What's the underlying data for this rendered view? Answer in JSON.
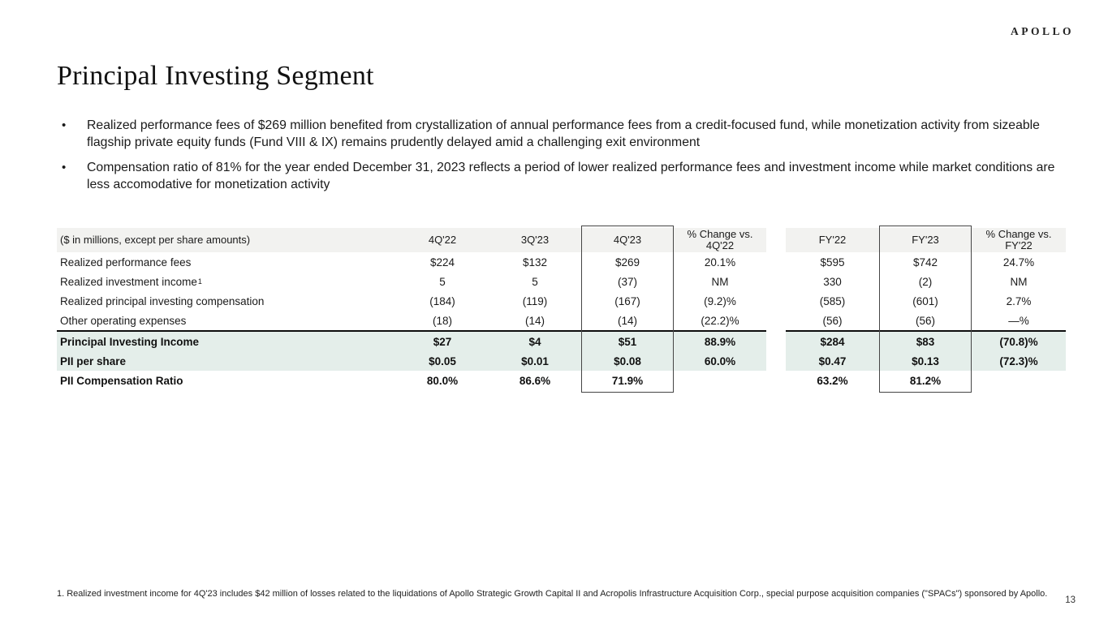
{
  "header": {
    "logo": "APOLLO",
    "title": "Principal Investing Segment"
  },
  "bullets": {
    "marker": "•",
    "items": [
      "Realized performance fees of $269 million benefited from crystallization of annual performance fees from a credit-focused fund, while monetization activity from sizeable flagship private equity funds (Fund VIII & IX) remains prudently delayed amid a challenging exit environment",
      "Compensation ratio of 81% for the year ended December 31, 2023 reflects a period of lower realized performance fees and investment income while market conditions are less accomodative for monetization activity"
    ]
  },
  "table": {
    "label_header": "($ in millions, except per share amounts)",
    "col_headers": [
      "4Q'22",
      "3Q'23",
      "4Q'23",
      "% Change vs. 4Q'22",
      "FY'22",
      "FY'23",
      "% Change vs. FY'22"
    ],
    "rows": [
      {
        "label": "Realized performance fees",
        "sup": "",
        "values": [
          "$224",
          "$132",
          "$269",
          "20.1%",
          "$595",
          "$742",
          "24.7%"
        ]
      },
      {
        "label": "Realized investment income",
        "sup": "1",
        "values": [
          "5",
          "5",
          "(37)",
          "NM",
          "330",
          "(2)",
          "NM"
        ]
      },
      {
        "label": "Realized principal investing compensation",
        "sup": "",
        "values": [
          "(184)",
          "(119)",
          "(167)",
          "(9.2)%",
          "(585)",
          "(601)",
          "2.7%"
        ]
      },
      {
        "label": "Other operating expenses",
        "sup": "",
        "values": [
          "(18)",
          "(14)",
          "(14)",
          "(22.2)%",
          "(56)",
          "(56)",
          "—%"
        ]
      },
      {
        "label": "Principal Investing Income",
        "sup": "",
        "values": [
          "$27",
          "$4",
          "$51",
          "88.9%",
          "$284",
          "$83",
          "(70.8)%"
        ]
      },
      {
        "label": "PII per share",
        "sup": "",
        "values": [
          "$0.05",
          "$0.01",
          "$0.08",
          "60.0%",
          "$0.47",
          "$0.13",
          "(72.3)%"
        ]
      },
      {
        "label": "PII Compensation Ratio",
        "sup": "",
        "values": [
          "80.0%",
          "86.6%",
          "71.9%",
          "",
          "63.2%",
          "81.2%",
          ""
        ]
      }
    ]
  },
  "footer": {
    "footnote": "1. Realized investment income for 4Q'23 includes $42 million of losses related to the liquidations of Apollo Strategic Growth Capital II and Acropolis Infrastructure Acquisition Corp., special purpose acquisition companies (\"SPACs\") sponsored by Apollo.",
    "page_number": "13"
  },
  "colors": {
    "header_bg": "#f2f2f0",
    "highlight_bg": "#e4eeea",
    "box_border": "#454545"
  }
}
